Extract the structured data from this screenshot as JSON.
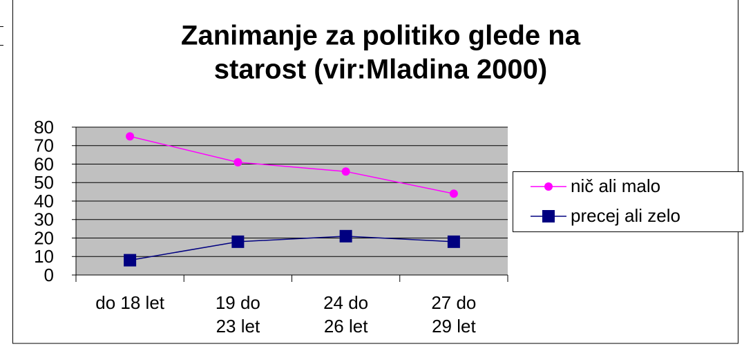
{
  "chart_data": {
    "type": "line",
    "title": [
      "Zanimanje za politiko glede na",
      "starost (vir:Mladina 2000)"
    ],
    "categories": [
      [
        "do 18 let"
      ],
      [
        "19 do",
        "23 let"
      ],
      [
        "24 do",
        "26 let"
      ],
      [
        "27 do",
        "29 let"
      ]
    ],
    "series": [
      {
        "name": "nič ali malo",
        "color": "#ff00ff",
        "marker": "circle",
        "values": [
          75,
          61,
          56,
          44
        ]
      },
      {
        "name": "precej ali zelo",
        "color": "#000080",
        "marker": "square",
        "values": [
          8,
          18,
          21,
          18
        ]
      }
    ],
    "ylim": [
      0,
      80
    ],
    "yticks": [
      0,
      10,
      20,
      30,
      40,
      50,
      60,
      70,
      80
    ],
    "grid": true,
    "legend": "right"
  }
}
